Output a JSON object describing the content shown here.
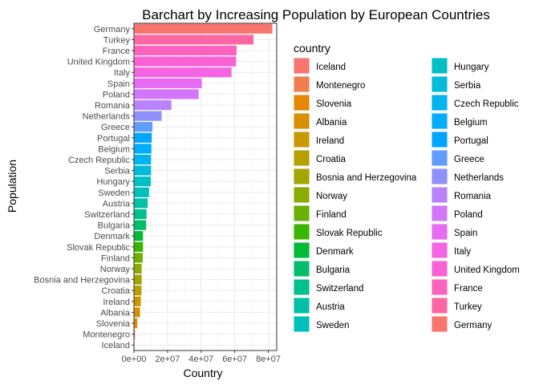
{
  "chart_data": {
    "type": "bar",
    "orientation": "horizontal",
    "title": "Barchart by Increasing Population by European Countries",
    "xlabel": "Country",
    "ylabel": "Population",
    "xlim": [
      0,
      85000000
    ],
    "x_ticks": [
      0,
      20000000,
      40000000,
      60000000,
      80000000
    ],
    "x_tick_labels": [
      "0e+00",
      "2e+07",
      "4e+07",
      "6e+07",
      "8e+07"
    ],
    "grid": true,
    "legend": {
      "title": "country",
      "placement": "right",
      "columns": 2
    },
    "categories": [
      "Iceland",
      "Montenegro",
      "Slovenia",
      "Albania",
      "Ireland",
      "Croatia",
      "Bosnia and Herzegovina",
      "Norway",
      "Finland",
      "Slovak Republic",
      "Denmark",
      "Bulgaria",
      "Switzerland",
      "Austria",
      "Sweden",
      "Hungary",
      "Serbia",
      "Czech Republic",
      "Belgium",
      "Portugal",
      "Greece",
      "Netherlands",
      "Romania",
      "Poland",
      "Spain",
      "Italy",
      "United Kingdom",
      "France",
      "Turkey",
      "Germany"
    ],
    "values": [
      300000,
      620000,
      2000000,
      3600000,
      4100000,
      4500000,
      4600000,
      4600000,
      5200000,
      5400000,
      5400000,
      7300000,
      7500000,
      8200000,
      9000000,
      10000000,
      10200000,
      10200000,
      10400000,
      10600000,
      11000000,
      16500000,
      22300000,
      38500000,
      40400000,
      58100000,
      60800000,
      61100000,
      71200000,
      82400000
    ],
    "colors": [
      "#F8766D",
      "#F07F4D",
      "#E58700",
      "#D79000",
      "#C99800",
      "#B79F00",
      "#A3A500",
      "#8CAB00",
      "#6BB100",
      "#39B600",
      "#00BA38",
      "#00BE6A",
      "#00C08B",
      "#00C1A5",
      "#00C0BB",
      "#00BFC4",
      "#00BBDA",
      "#00B4EF",
      "#00ADFA",
      "#00A5FF",
      "#619CFF",
      "#8F91FF",
      "#B983FF",
      "#D376FF",
      "#E76BF3",
      "#F564E3",
      "#FC61D5",
      "#FF62BC",
      "#FF67A4",
      "#F8766D"
    ]
  }
}
